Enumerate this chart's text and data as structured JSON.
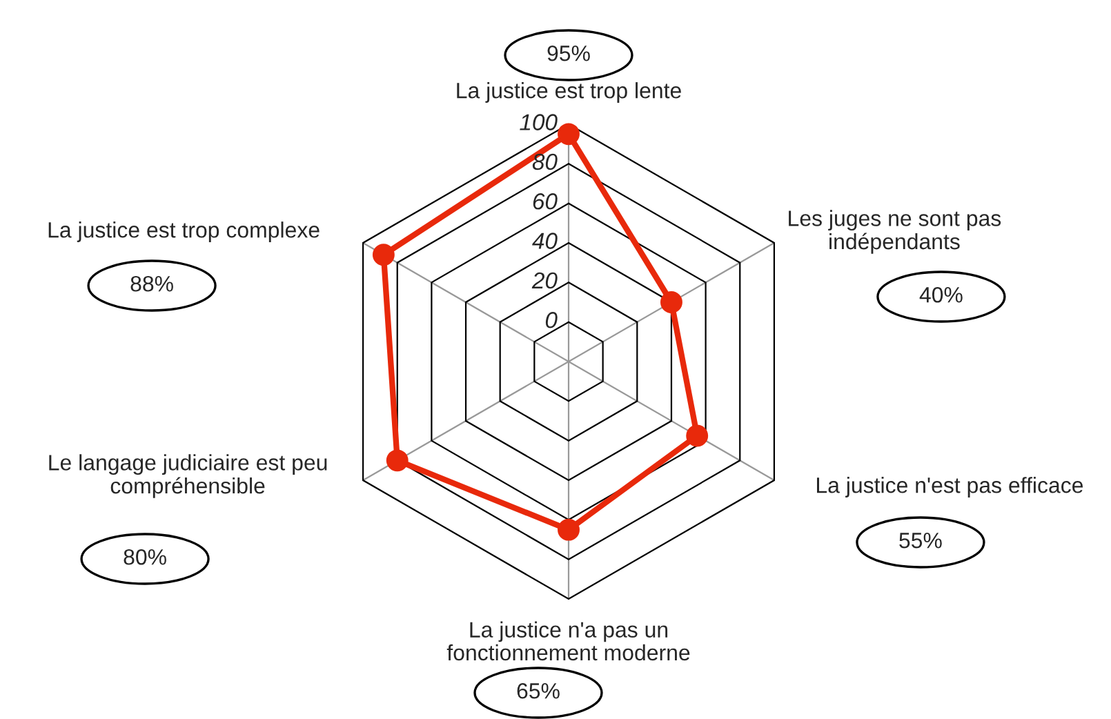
{
  "chart_data": {
    "type": "radar",
    "categories": [
      "La justice est trop lente",
      "Les juges ne sont pas\nindépendants",
      "La justice n'est pas efficace",
      "La justice n'a pas un\nfonctionnement moderne",
      "Le langage judiciaire est peu\ncompréhensible",
      "La justice est trop complexe"
    ],
    "series": [
      {
        "color": "#e8290b",
        "values": [
          95,
          40,
          55,
          65,
          80,
          88
        ]
      }
    ],
    "annotations": [
      "95%",
      "40%",
      "55%",
      "65%",
      "80%",
      "88%"
    ],
    "ylim": [
      -20,
      100
    ],
    "yticks": [
      0,
      20,
      40,
      60,
      80,
      100
    ],
    "grid": true,
    "marker": "circle"
  }
}
